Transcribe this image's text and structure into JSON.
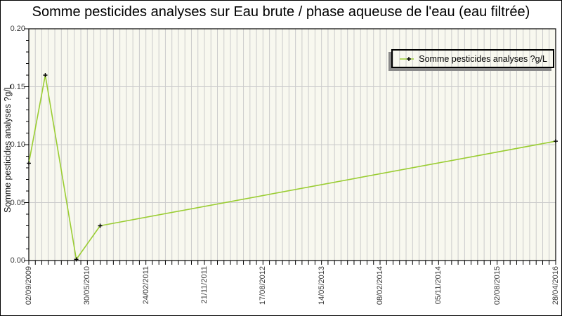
{
  "chart_data": {
    "type": "line",
    "title": "Somme pesticides analyses sur Eau brute / phase aqueuse de l'eau (eau filtrée)",
    "xlabel": "",
    "ylabel": "Somme pesticides analyses ?g/L",
    "ylim": [
      0,
      0.2
    ],
    "y_tick_labels": [
      "0.00",
      "0.05",
      "0.10",
      "0.15",
      "0.20"
    ],
    "y_minor_tick_step": 0.01,
    "x_tick_labels": [
      "02/09/2009",
      "30/05/2010",
      "24/02/2011",
      "21/11/2011",
      "17/08/2012",
      "14/05/2013",
      "08/02/2014",
      "05/11/2014",
      "02/08/2015",
      "28/04/2016"
    ],
    "x_minor_divisions": 81,
    "grid": {
      "vertical_minor": true,
      "horizontal_major": true,
      "color": "#cbcbcb"
    },
    "plot_background": "#f8f8ef",
    "axis_color": "#000000",
    "legend": {
      "position": "top-right",
      "entries": [
        {
          "label": "Somme pesticides analyses ?g/L",
          "line_color": "#9acd32",
          "marker": "plus",
          "marker_color": "#000000"
        }
      ]
    },
    "series": [
      {
        "name": "Somme pesticides analyses ?g/L",
        "color": "#9acd32",
        "marker": "plus",
        "marker_color": "#000000",
        "points": [
          {
            "date": "02/09/2009",
            "value": 0.084
          },
          {
            "date": "17/11/2009",
            "value": 0.16
          },
          {
            "date": "09/04/2010",
            "value": 0.001
          },
          {
            "date": "28/07/2010",
            "value": 0.03
          },
          {
            "date": "28/04/2016",
            "value": 0.103
          }
        ]
      }
    ]
  }
}
